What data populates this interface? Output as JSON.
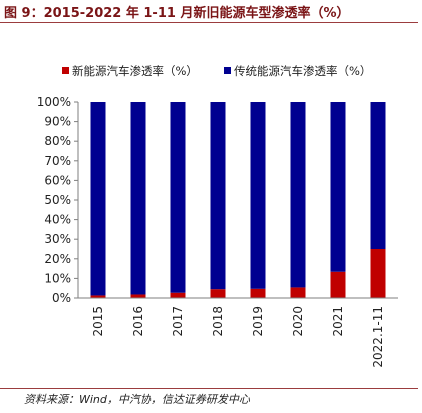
{
  "header": {
    "title": "图 9：2015-2022 年 1-11 月新旧能源车型渗透率（%）"
  },
  "footer": {
    "source": "资料来源：Wind，中汽协，信达证券研发中心"
  },
  "colors": {
    "new_energy": "#c00000",
    "traditional": "#000090",
    "axis": "#7f7f7f",
    "rule": "#9b3c3e"
  },
  "chart_data": {
    "type": "bar",
    "stacked": true,
    "categories": [
      "2015",
      "2016",
      "2017",
      "2018",
      "2019",
      "2020",
      "2021",
      "2022.1-11"
    ],
    "series": [
      {
        "name": "新能源汽车渗透率（%）",
        "values": [
          1.3,
          1.8,
          2.7,
          4.5,
          4.7,
          5.4,
          13.4,
          25.0
        ]
      },
      {
        "name": "传统能源汽车渗透率（%）",
        "values": [
          98.7,
          98.2,
          97.3,
          95.5,
          95.3,
          94.6,
          86.6,
          75.0
        ]
      }
    ],
    "yticks": [
      "0%",
      "10%",
      "20%",
      "30%",
      "40%",
      "50%",
      "60%",
      "70%",
      "80%",
      "90%",
      "100%"
    ],
    "ylim": [
      0,
      100
    ],
    "grid": false,
    "legend_position": "top"
  }
}
